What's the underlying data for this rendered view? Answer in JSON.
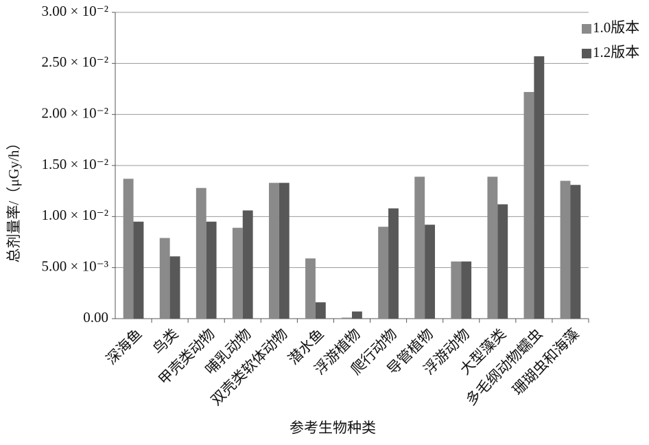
{
  "chart_data": {
    "type": "bar",
    "x_label": "参考生物种类",
    "y_label": "总剂量率/（μGy/h）",
    "categories": [
      "深海鱼",
      "鸟类",
      "甲壳类动物",
      "哺乳动物",
      "双壳类软体动物",
      "潜水鱼",
      "浮游植物",
      "爬行动物",
      "导管植物",
      "浮游动物",
      "大型藻类",
      "多毛纲动物蠕虫",
      "珊瑚虫和海藻"
    ],
    "series": [
      {
        "name": "1.0版本",
        "color": "#8a8a8a",
        "values": [
          0.0137,
          0.0079,
          0.0128,
          0.0089,
          0.0133,
          0.0059,
          0.0001,
          0.009,
          0.0139,
          0.0056,
          0.0139,
          0.0222,
          0.0135
        ]
      },
      {
        "name": "1.2版本",
        "color": "#585858",
        "values": [
          0.0095,
          0.0061,
          0.0095,
          0.0106,
          0.0133,
          0.0016,
          0.0007,
          0.0108,
          0.0092,
          0.0056,
          0.0112,
          0.0257,
          0.0131
        ]
      }
    ],
    "ylim": [
      0,
      0.03
    ],
    "yticks": [
      {
        "value": 0,
        "label": "0.00"
      },
      {
        "value": 0.005,
        "label": "5.00 × 10⁻³"
      },
      {
        "value": 0.01,
        "label": "1.00 × 10⁻²"
      },
      {
        "value": 0.015,
        "label": "1.50 × 10⁻²"
      },
      {
        "value": 0.02,
        "label": "2.00 × 10⁻²"
      },
      {
        "value": 0.025,
        "label": "2.50 × 10⁻²"
      },
      {
        "value": 0.03,
        "label": "3.00 × 10⁻²"
      }
    ],
    "grid": true,
    "legend": "top-right"
  }
}
